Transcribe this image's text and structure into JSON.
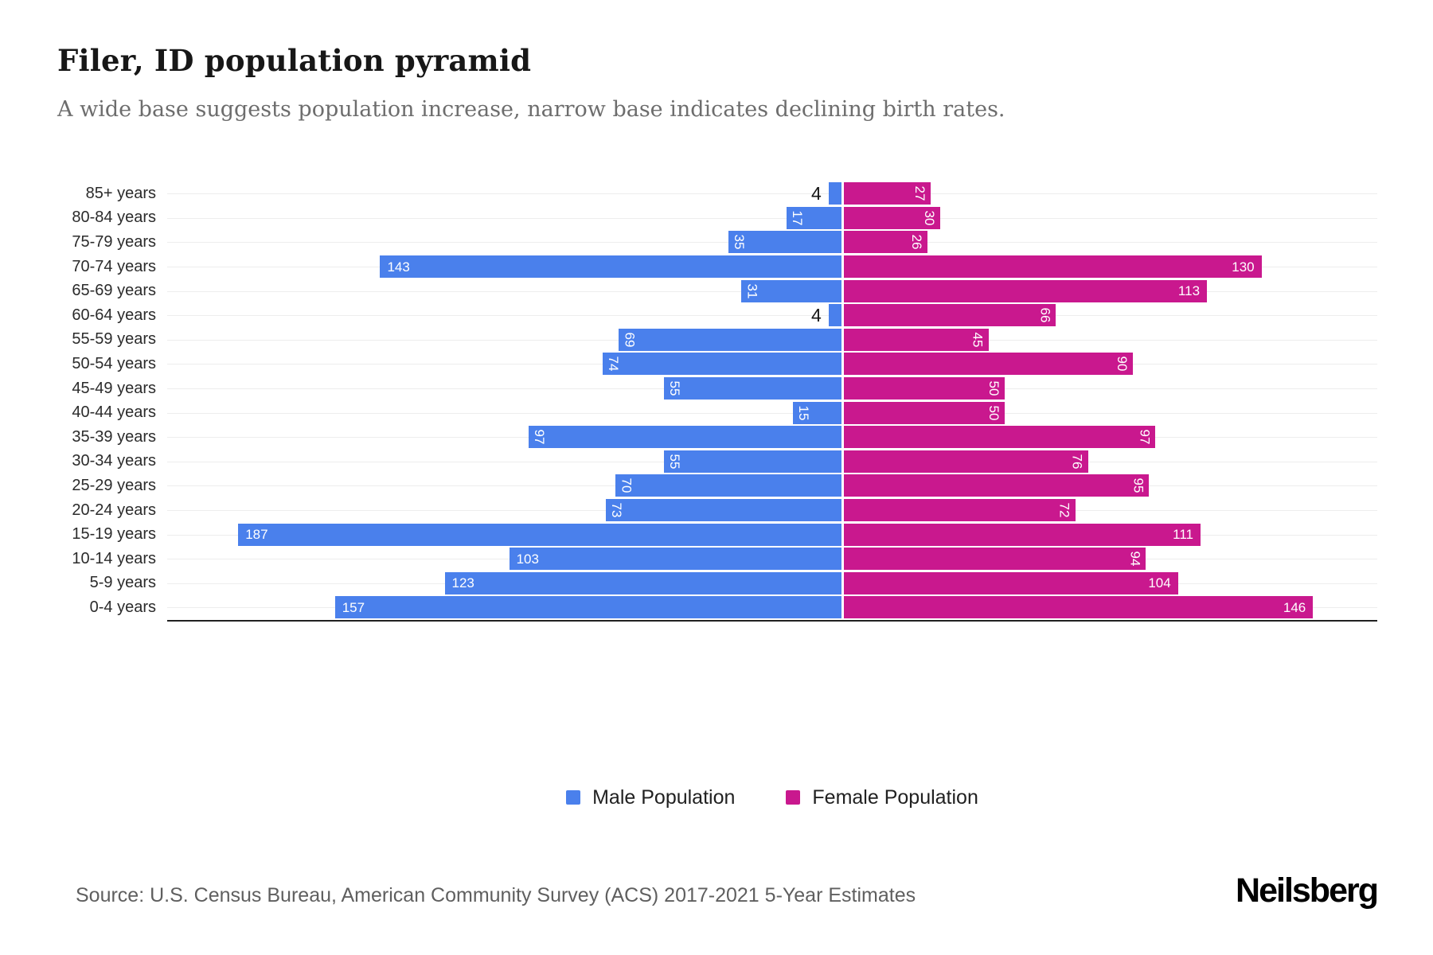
{
  "header": {
    "title": "Filer, ID population pyramid",
    "subtitle": "A wide base suggests population increase, narrow base indicates declining birth rates."
  },
  "chart_data": {
    "type": "bar",
    "subtype": "population-pyramid",
    "orientation": "horizontal",
    "categories": [
      "85+ years",
      "80-84 years",
      "75-79 years",
      "70-74 years",
      "65-69 years",
      "60-64 years",
      "55-59 years",
      "50-54 years",
      "45-49 years",
      "40-44 years",
      "35-39 years",
      "30-34 years",
      "25-29 years",
      "20-24 years",
      "15-19 years",
      "10-14 years",
      "5-9 years",
      "0-4 years"
    ],
    "series": [
      {
        "name": "Male Population",
        "side": "left",
        "color": "#4A80EC",
        "values": [
          4,
          17,
          35,
          143,
          31,
          4,
          69,
          74,
          55,
          15,
          97,
          55,
          70,
          73,
          187,
          103,
          123,
          157
        ]
      },
      {
        "name": "Female Population",
        "side": "right",
        "color": "#C9188E",
        "values": [
          27,
          30,
          26,
          130,
          113,
          66,
          45,
          90,
          50,
          50,
          97,
          76,
          95,
          72,
          111,
          94,
          104,
          146
        ]
      }
    ],
    "male_axis_max": 209,
    "female_axis_max": 166,
    "value_label_color": "#ffffff",
    "grid": true,
    "gridline_color": "#ededed",
    "baseline_color": "#212121",
    "legend_position": "bottom"
  },
  "footer": {
    "source": "Source: U.S. Census Bureau, American Community Survey (ACS) 2017-2021 5-Year Estimates",
    "brand": "Neilsberg"
  }
}
